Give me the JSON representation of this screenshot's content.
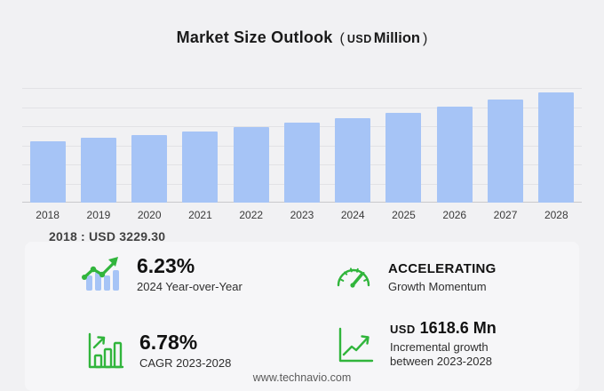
{
  "title": {
    "main": "Market Size Outlook",
    "paren_open": "(",
    "unit_currency": "USD",
    "unit_word": "Million",
    "paren_close": ")"
  },
  "chart_data": {
    "type": "bar",
    "title": "Market Size Outlook ( USD Million )",
    "categories": [
      "2018",
      "2019",
      "2020",
      "2021",
      "2022",
      "2023",
      "2024",
      "2025",
      "2026",
      "2027",
      "2028"
    ],
    "values": [
      3229.3,
      3378,
      3543,
      3728,
      3933,
      4167,
      4427,
      4714,
      5030,
      5382,
      5785.6
    ],
    "xlabel": "",
    "ylabel": "USD Million",
    "ylim": [
      0,
      6000
    ],
    "gridline_step": 1000,
    "grid": true,
    "legend": false,
    "bar_color": "#a6c4f6"
  },
  "annotation_2018": "2018 : USD  3229.30",
  "stats": {
    "yoy": {
      "value": "6.23%",
      "label": "2024 Year-over-Year",
      "icon": "bar-chart-trend-icon"
    },
    "momentum": {
      "value": "ACCELERATING",
      "label": "Growth Momentum",
      "icon": "speedometer-icon"
    },
    "cagr": {
      "value": "6.78%",
      "label": "CAGR 2023-2028",
      "icon": "growth-bars-arrow-icon"
    },
    "incremental": {
      "value_prefix": "USD",
      "value": "1618.6 Mn",
      "label": "Incremental growth between 2023-2028",
      "icon": "line-growth-axis-icon"
    }
  },
  "footer": {
    "url": "www.technavio.com"
  },
  "colors": {
    "background": "#f1f1f3",
    "panel": "#f6f6f8",
    "bar": "#a6c4f6",
    "accent_green": "#31b53c",
    "gridline": "#e2e2e5",
    "axis_line": "#c9c9cc",
    "title_text": "#1a1a1a",
    "footer_text": "#5a5a5a"
  }
}
